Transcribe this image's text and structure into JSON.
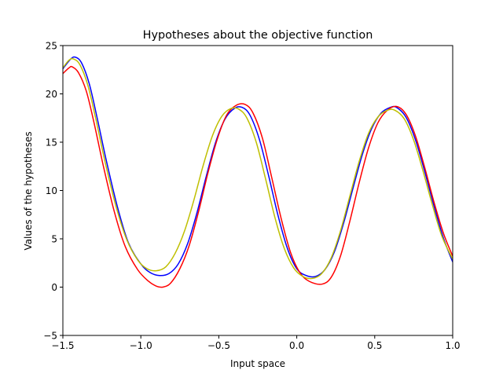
{
  "chart_data": {
    "type": "line",
    "title": "Hypotheses about the objective function",
    "xlabel": "Input space",
    "ylabel": "Values of the hypotheses",
    "xlim": [
      -1.5,
      1.0
    ],
    "ylim": [
      -5,
      25
    ],
    "grid": false,
    "legend": "none",
    "xticks": [
      {
        "value": -1.5,
        "label": "−1.5"
      },
      {
        "value": -1.0,
        "label": "−1.0"
      },
      {
        "value": -0.5,
        "label": "−0.5"
      },
      {
        "value": 0.0,
        "label": "0.0"
      },
      {
        "value": 0.5,
        "label": "0.5"
      },
      {
        "value": 1.0,
        "label": "1.0"
      }
    ],
    "yticks": [
      {
        "value": -5,
        "label": "−5"
      },
      {
        "value": 0,
        "label": "0"
      },
      {
        "value": 5,
        "label": "5"
      },
      {
        "value": 10,
        "label": "10"
      },
      {
        "value": 15,
        "label": "15"
      },
      {
        "value": 20,
        "label": "20"
      },
      {
        "value": 25,
        "label": "25"
      }
    ],
    "series": [
      {
        "color": "#0000ff",
        "points": [
          [
            -1.5,
            22.6
          ],
          [
            -1.45,
            23.6
          ],
          [
            -1.42,
            23.8
          ],
          [
            -1.38,
            23.2
          ],
          [
            -1.33,
            21.0
          ],
          [
            -1.28,
            17.5
          ],
          [
            -1.22,
            13.0
          ],
          [
            -1.15,
            8.3
          ],
          [
            -1.08,
            4.6
          ],
          [
            -1.0,
            2.4
          ],
          [
            -0.94,
            1.5
          ],
          [
            -0.88,
            1.2
          ],
          [
            -0.82,
            1.4
          ],
          [
            -0.76,
            2.4
          ],
          [
            -0.7,
            4.5
          ],
          [
            -0.64,
            7.7
          ],
          [
            -0.58,
            11.5
          ],
          [
            -0.52,
            15.0
          ],
          [
            -0.46,
            17.4
          ],
          [
            -0.4,
            18.5
          ],
          [
            -0.35,
            18.6
          ],
          [
            -0.3,
            17.8
          ],
          [
            -0.24,
            15.3
          ],
          [
            -0.18,
            11.5
          ],
          [
            -0.12,
            7.4
          ],
          [
            -0.06,
            4.0
          ],
          [
            0.0,
            1.9
          ],
          [
            0.06,
            1.2
          ],
          [
            0.12,
            1.1
          ],
          [
            0.18,
            1.8
          ],
          [
            0.24,
            3.6
          ],
          [
            0.3,
            6.6
          ],
          [
            0.36,
            10.2
          ],
          [
            0.42,
            13.7
          ],
          [
            0.48,
            16.4
          ],
          [
            0.54,
            18.0
          ],
          [
            0.6,
            18.6
          ],
          [
            0.64,
            18.6
          ],
          [
            0.7,
            17.6
          ],
          [
            0.76,
            15.3
          ],
          [
            0.82,
            12.0
          ],
          [
            0.88,
            8.4
          ],
          [
            0.94,
            5.1
          ],
          [
            1.0,
            2.6
          ]
        ]
      },
      {
        "color": "#ff0000",
        "points": [
          [
            -1.5,
            22.1
          ],
          [
            -1.46,
            22.7
          ],
          [
            -1.44,
            22.8
          ],
          [
            -1.4,
            22.2
          ],
          [
            -1.35,
            20.3
          ],
          [
            -1.3,
            17.0
          ],
          [
            -1.24,
            12.5
          ],
          [
            -1.17,
            7.8
          ],
          [
            -1.1,
            4.2
          ],
          [
            -1.02,
            1.8
          ],
          [
            -0.95,
            0.6
          ],
          [
            -0.9,
            0.1
          ],
          [
            -0.86,
            0.0
          ],
          [
            -0.81,
            0.4
          ],
          [
            -0.75,
            1.9
          ],
          [
            -0.69,
            4.3
          ],
          [
            -0.63,
            7.8
          ],
          [
            -0.57,
            11.8
          ],
          [
            -0.51,
            15.3
          ],
          [
            -0.45,
            17.8
          ],
          [
            -0.39,
            18.8
          ],
          [
            -0.33,
            18.9
          ],
          [
            -0.28,
            18.0
          ],
          [
            -0.22,
            15.4
          ],
          [
            -0.16,
            11.3
          ],
          [
            -0.1,
            7.1
          ],
          [
            -0.04,
            3.6
          ],
          [
            0.02,
            1.5
          ],
          [
            0.08,
            0.6
          ],
          [
            0.16,
            0.3
          ],
          [
            0.22,
            1.0
          ],
          [
            0.28,
            3.2
          ],
          [
            0.34,
            6.8
          ],
          [
            0.4,
            10.8
          ],
          [
            0.46,
            14.4
          ],
          [
            0.52,
            17.0
          ],
          [
            0.58,
            18.3
          ],
          [
            0.64,
            18.7
          ],
          [
            0.7,
            17.9
          ],
          [
            0.76,
            15.7
          ],
          [
            0.82,
            12.4
          ],
          [
            0.88,
            8.8
          ],
          [
            0.94,
            5.6
          ],
          [
            1.0,
            3.2
          ]
        ]
      },
      {
        "color": "#bfbf00",
        "points": [
          [
            -1.5,
            22.7
          ],
          [
            -1.46,
            23.5
          ],
          [
            -1.43,
            23.6
          ],
          [
            -1.39,
            23.0
          ],
          [
            -1.34,
            20.9
          ],
          [
            -1.29,
            17.5
          ],
          [
            -1.23,
            13.0
          ],
          [
            -1.16,
            8.4
          ],
          [
            -1.09,
            4.9
          ],
          [
            -1.02,
            2.8
          ],
          [
            -0.96,
            1.9
          ],
          [
            -0.9,
            1.7
          ],
          [
            -0.84,
            2.1
          ],
          [
            -0.78,
            3.5
          ],
          [
            -0.72,
            5.8
          ],
          [
            -0.66,
            9.0
          ],
          [
            -0.6,
            12.6
          ],
          [
            -0.54,
            15.7
          ],
          [
            -0.48,
            17.7
          ],
          [
            -0.42,
            18.5
          ],
          [
            -0.37,
            18.4
          ],
          [
            -0.32,
            17.5
          ],
          [
            -0.26,
            15.0
          ],
          [
            -0.2,
            11.2
          ],
          [
            -0.14,
            7.2
          ],
          [
            -0.08,
            4.0
          ],
          [
            -0.02,
            2.0
          ],
          [
            0.04,
            1.1
          ],
          [
            0.1,
            0.9
          ],
          [
            0.16,
            1.4
          ],
          [
            0.22,
            3.0
          ],
          [
            0.28,
            5.8
          ],
          [
            0.34,
            9.4
          ],
          [
            0.4,
            13.0
          ],
          [
            0.46,
            15.9
          ],
          [
            0.52,
            17.6
          ],
          [
            0.58,
            18.3
          ],
          [
            0.63,
            18.3
          ],
          [
            0.69,
            17.4
          ],
          [
            0.75,
            15.2
          ],
          [
            0.81,
            12.0
          ],
          [
            0.87,
            8.5
          ],
          [
            0.93,
            5.3
          ],
          [
            1.0,
            2.9
          ]
        ]
      }
    ]
  }
}
